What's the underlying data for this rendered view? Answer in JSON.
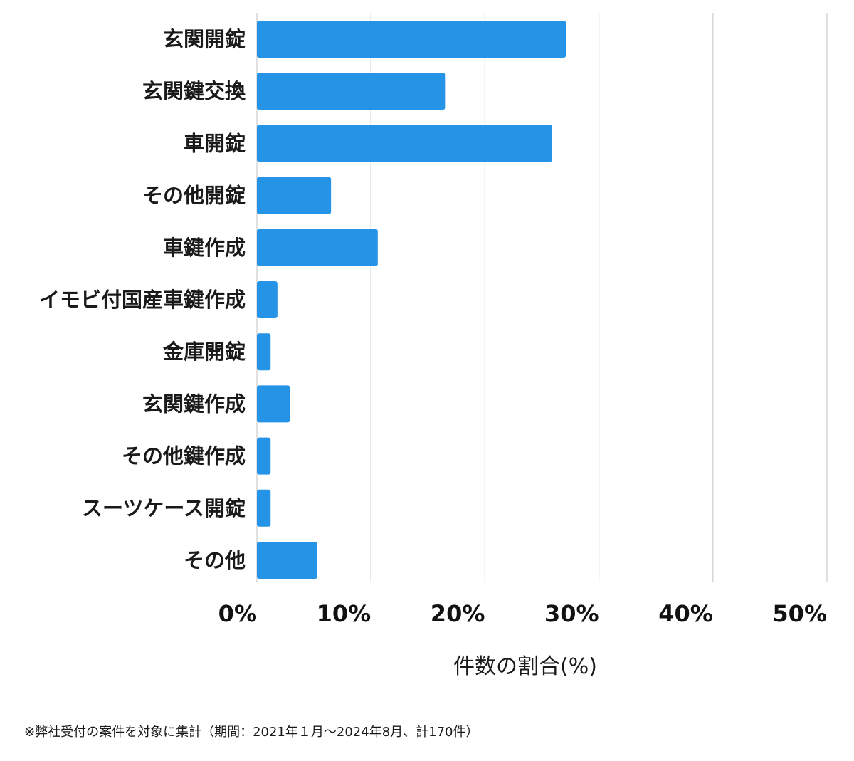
{
  "chart_data": {
    "type": "bar",
    "orientation": "horizontal",
    "categories": [
      "玄関開錠",
      "玄関鍵交換",
      "車開錠",
      "その他開錠",
      "車鍵作成",
      "イモビ付国産車鍵作成",
      "金庫開錠",
      "玄関鍵作成",
      "その他鍵作成",
      "スーツケース開錠",
      "その他"
    ],
    "values": [
      27.1,
      16.5,
      25.9,
      6.5,
      10.6,
      1.8,
      1.2,
      2.9,
      1.2,
      1.2,
      5.3
    ],
    "xlabel": "件数の割合(%)",
    "xlim": [
      0,
      50
    ],
    "xticks": [
      0,
      10,
      20,
      30,
      40,
      50
    ],
    "xtick_labels": [
      "0%",
      "10%",
      "20%",
      "30%",
      "40%",
      "50%"
    ],
    "grid": true,
    "bar_color": "#2694E6",
    "grid_color": "#cccccc"
  },
  "footnote": "※弊社受付の案件を対象に集計（期間：2021年１月〜2024年8月、計170件）"
}
